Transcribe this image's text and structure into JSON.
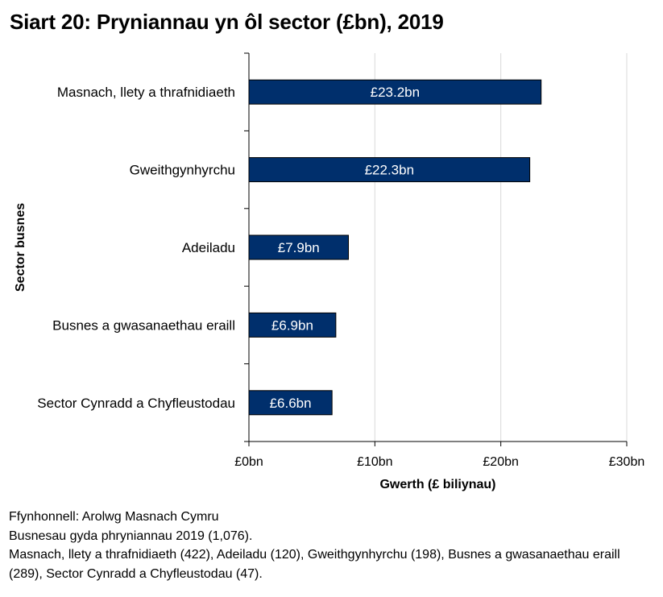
{
  "chart_data": {
    "type": "bar",
    "orientation": "horizontal",
    "title": "Siart 20: Pryniannau yn ôl sector (£bn), 2019",
    "xlabel": "Gwerth (£ biliynau)",
    "ylabel": "Sector busnes",
    "categories": [
      "Masnach, llety a thrafnidiaeth",
      "Gweithgynhyrchu",
      "Adeiladu",
      "Busnes a gwasanaethau eraill",
      "Sector Cynradd a Chyfleustodau"
    ],
    "values": [
      23.2,
      22.3,
      7.9,
      6.9,
      6.6
    ],
    "data_labels": [
      "£23.2bn",
      "£22.3bn",
      "£7.9bn",
      "£6.9bn",
      "£6.6bn"
    ],
    "xlim": [
      0,
      30
    ],
    "x_ticks": [
      0,
      10,
      20,
      30
    ],
    "x_tick_labels": [
      "£0bn",
      "£10bn",
      "£20bn",
      "£30bn"
    ],
    "grid": true,
    "bar_color": "#002F6C",
    "grid_color": "#D9D9D9",
    "label_color": "#FFFFFF"
  },
  "footnotes": [
    "Ffynhonnell: Arolwg Masnach Cymru",
    "Busnesau gyda phryniannau 2019 (1,076).",
    "Masnach, llety a thrafnidiaeth (422), Adeiladu (120), Gweithgynhyrchu (198), Busnes a gwasanaethau eraill (289), Sector Cynradd a Chyfleustodau (47)."
  ]
}
